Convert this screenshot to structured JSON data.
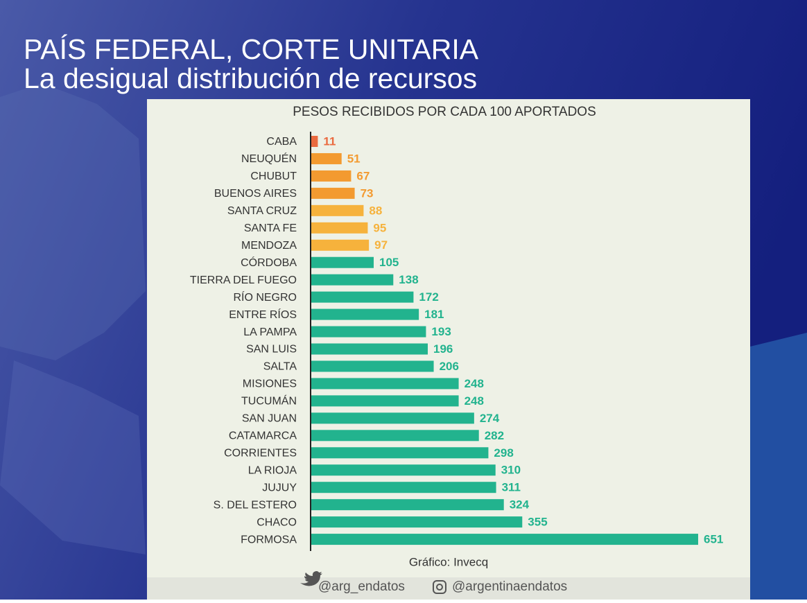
{
  "header": {
    "title": "PAÍS FEDERAL, CORTE UNITARIA",
    "subtitle": "La desigual distribución de recursos"
  },
  "chart_data": {
    "type": "bar",
    "orientation": "horizontal",
    "title": "PESOS RECIBIDOS POR CADA 100 APORTADOS",
    "categories": [
      "CABA",
      "NEUQUÉN",
      "CHUBUT",
      "BUENOS AIRES",
      "SANTA CRUZ",
      "SANTA FE",
      "MENDOZA",
      "CÓRDOBA",
      "TIERRA DEL FUEGO",
      "RÍO NEGRO",
      "ENTRE RÍOS",
      "LA PAMPA",
      "SAN LUIS",
      "SALTA",
      "MISIONES",
      "TUCUMÁN",
      "SAN JUAN",
      "CATAMARCA",
      "CORRIENTES",
      "LA RIOJA",
      "JUJUY",
      "S. DEL ESTERO",
      "CHACO",
      "FORMOSA"
    ],
    "values": [
      11,
      51,
      67,
      73,
      88,
      95,
      97,
      105,
      138,
      172,
      181,
      193,
      196,
      206,
      248,
      248,
      274,
      282,
      298,
      310,
      311,
      324,
      355,
      651
    ],
    "colors": [
      "#ea6a3f",
      "#f39a30",
      "#f39a30",
      "#f39a30",
      "#f6b23c",
      "#f6b23c",
      "#f6b23c",
      "#22b38e",
      "#22b38e",
      "#22b38e",
      "#22b38e",
      "#22b38e",
      "#22b38e",
      "#22b38e",
      "#22b38e",
      "#22b38e",
      "#22b38e",
      "#22b38e",
      "#22b38e",
      "#22b38e",
      "#22b38e",
      "#22b38e",
      "#22b38e",
      "#22b38e"
    ],
    "source": "Gráfico: Invecq"
  },
  "footer": {
    "twitter": "@arg_endatos",
    "instagram": "@argentinaendatos"
  }
}
